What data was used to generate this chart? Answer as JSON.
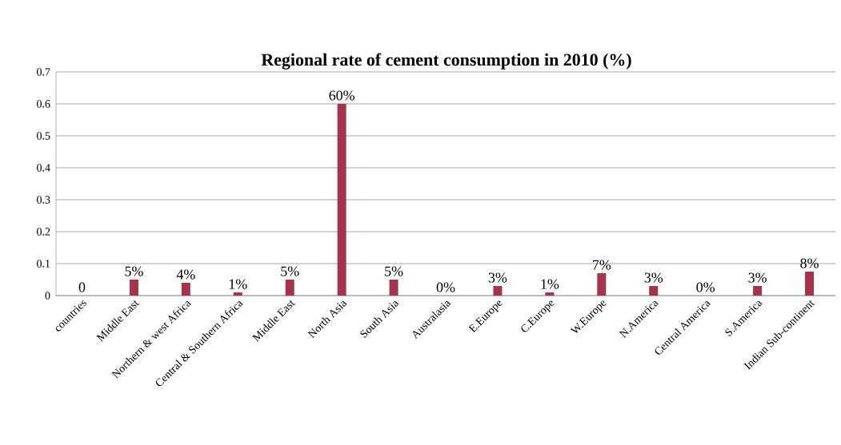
{
  "chart_data": {
    "type": "bar",
    "title": "Regional rate of cement consumption in 2010 (%)",
    "categories": [
      "countries",
      "Middle East",
      "Northern & west Africa",
      "Central & Southern Africa",
      "Middle East",
      "North Asia",
      "South Asia",
      "Australasia",
      "E.Europe",
      "C.Europe",
      "W.Europe",
      "N.America",
      "Central America",
      "S.America",
      "Indian Sub-continent"
    ],
    "values": [
      0,
      0.05,
      0.04,
      0.01,
      0.05,
      0.6,
      0.05,
      0,
      0.03,
      0.01,
      0.07,
      0.03,
      0,
      0.03,
      0.075
    ],
    "value_labels": [
      "0",
      "5%",
      "4%",
      "1%",
      "5%",
      "60%",
      "5%",
      "0%",
      "3%",
      "1%",
      "7%",
      "3%",
      "0%",
      "3%",
      "8%"
    ],
    "color": "#a5334a",
    "ylim": [
      0,
      0.7
    ],
    "yticks": [
      0,
      0.1,
      0.2,
      0.3,
      0.4,
      0.5,
      0.6,
      0.7
    ],
    "grid": "y"
  }
}
